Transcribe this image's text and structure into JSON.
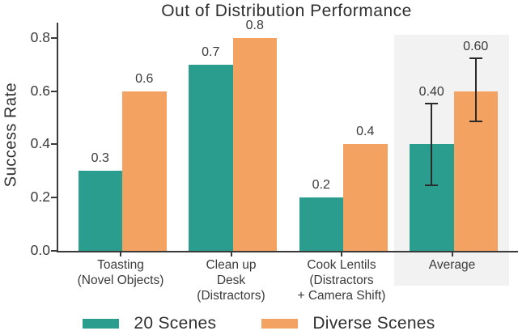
{
  "chart_data": {
    "type": "bar",
    "title": "Out of Distribution Performance",
    "ylabel": "Success Rate",
    "xlabel": "",
    "ylim": [
      0.0,
      0.86
    ],
    "yticks": [
      0.0,
      0.2,
      0.4,
      0.6,
      0.8
    ],
    "grid": false,
    "legend_position": "bottom",
    "categories": [
      "Toasting\n(Novel Objects)",
      "Clean up\nDesk\n(Distractors)",
      "Cook Lentils\n(Distractors\n+ Camera Shift)",
      "Average"
    ],
    "series": [
      {
        "name": "20 Scenes",
        "color": "#2a9d8f",
        "values": [
          0.3,
          0.7,
          0.2,
          0.4
        ],
        "value_labels": [
          "0.3",
          "0.7",
          "0.2",
          "0.40"
        ],
        "errors": [
          null,
          null,
          null,
          {
            "low": 0.25,
            "high": 0.55
          }
        ]
      },
      {
        "name": "Diverse Scenes",
        "color": "#f4a261",
        "values": [
          0.6,
          0.8,
          0.4,
          0.6
        ],
        "value_labels": [
          "0.6",
          "0.8",
          "0.4",
          "0.60"
        ],
        "errors": [
          null,
          null,
          null,
          {
            "low": 0.49,
            "high": 0.72
          }
        ]
      }
    ],
    "highlight": {
      "category": "Average",
      "category_index": 3,
      "color": "#f2f2f3"
    },
    "colors": {
      "axis": "#3a3a3a",
      "text": "#3a3a3a",
      "error_bar": "#2b2b2b",
      "background": "#ffffff"
    }
  }
}
